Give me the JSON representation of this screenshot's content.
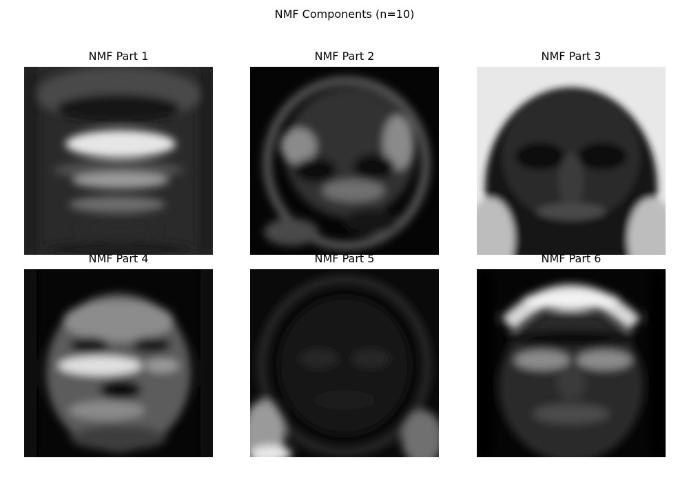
{
  "figure": {
    "title": "NMF Components (n=10)"
  },
  "panels": [
    {
      "title": "NMF Part 1",
      "style": "p1"
    },
    {
      "title": "NMF Part 2",
      "style": "p2"
    },
    {
      "title": "NMF Part 3",
      "style": "p3"
    },
    {
      "title": "NMF Part 4",
      "style": "p4"
    },
    {
      "title": "NMF Part 5",
      "style": "p5"
    },
    {
      "title": "NMF Part 6",
      "style": "p6"
    }
  ],
  "colors": {
    "background": "#ffffff",
    "image_dark": "#000000",
    "image_light": "#ffffff"
  }
}
